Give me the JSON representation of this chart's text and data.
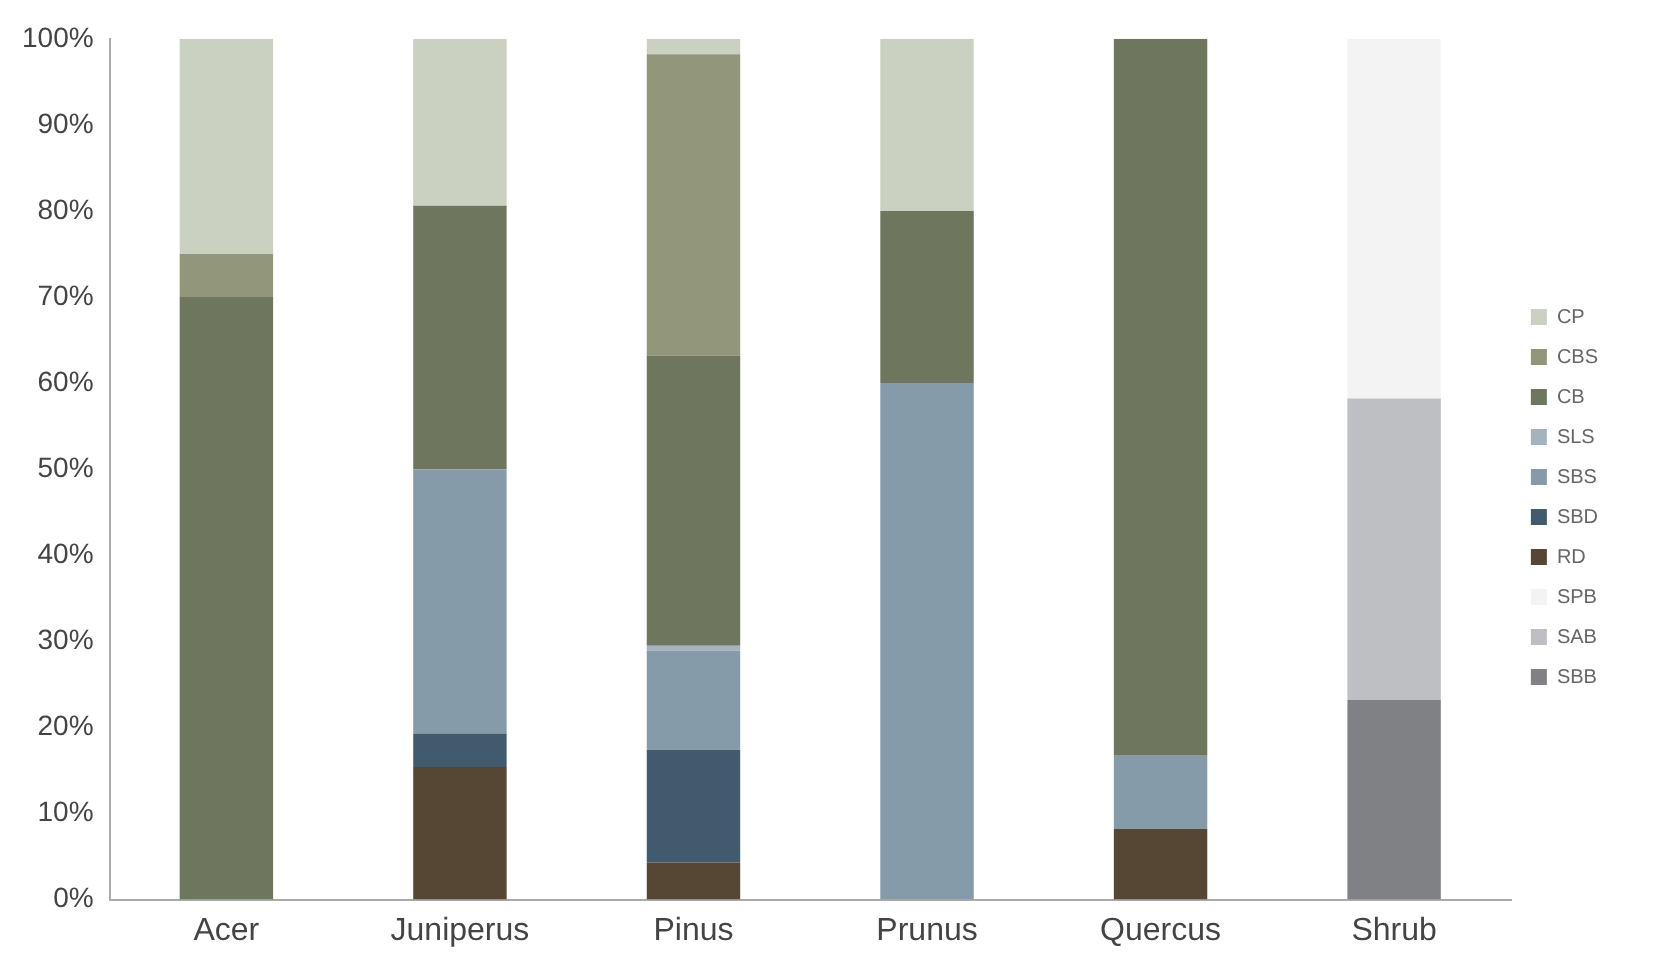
{
  "chart_data": {
    "type": "bar",
    "stacked": true,
    "categories": [
      "Acer",
      "Juniperus",
      "Pinus",
      "Prunus",
      "Quercus",
      "Shrub"
    ],
    "series": [
      {
        "name": "SBB",
        "color": "#808184",
        "values": [
          null,
          null,
          null,
          null,
          null,
          23.2
        ]
      },
      {
        "name": "SAB",
        "color": "#bebfc3",
        "values": [
          null,
          null,
          null,
          null,
          null,
          35
        ]
      },
      {
        "name": "SPB",
        "color": "#f3f3f3",
        "values": [
          null,
          null,
          null,
          null,
          null,
          41.8
        ]
      },
      {
        "name": "RD",
        "color": "#554733",
        "values": [
          null,
          15.4,
          4.3,
          null,
          8.2,
          null
        ]
      },
      {
        "name": "SBD",
        "color": "#425a6e",
        "values": [
          null,
          3.9,
          13.1,
          null,
          null,
          null
        ]
      },
      {
        "name": "SBS",
        "color": "#869ba9",
        "values": [
          null,
          30.7,
          11.5,
          60,
          8.5,
          null
        ]
      },
      {
        "name": "SLS",
        "color": "#a5b3bf",
        "values": [
          null,
          null,
          0.6,
          null,
          null,
          null
        ]
      },
      {
        "name": "CB",
        "color": "#6e765e",
        "values": [
          70,
          30.6,
          33.7,
          20,
          83.3,
          null
        ]
      },
      {
        "name": "CBS",
        "color": "#92967b",
        "values": [
          5,
          null,
          35,
          null,
          null,
          null
        ]
      },
      {
        "name": "CP",
        "color": "#cbd1c0",
        "values": [
          25,
          19.4,
          1.8,
          20,
          null,
          null
        ]
      }
    ],
    "ylim": [
      0,
      100
    ],
    "yticks": [
      {
        "value": 0,
        "label": "0%"
      },
      {
        "value": 10,
        "label": "10%"
      },
      {
        "value": 20,
        "label": "20%"
      },
      {
        "value": 30,
        "label": "30%"
      },
      {
        "value": 40,
        "label": "40%"
      },
      {
        "value": 50,
        "label": "50%"
      },
      {
        "value": 60,
        "label": "60%"
      },
      {
        "value": 70,
        "label": "70%"
      },
      {
        "value": 80,
        "label": "80%"
      },
      {
        "value": 90,
        "label": "90%"
      },
      {
        "value": 100,
        "label": "100%"
      }
    ],
    "grid": false,
    "legend": "right"
  }
}
